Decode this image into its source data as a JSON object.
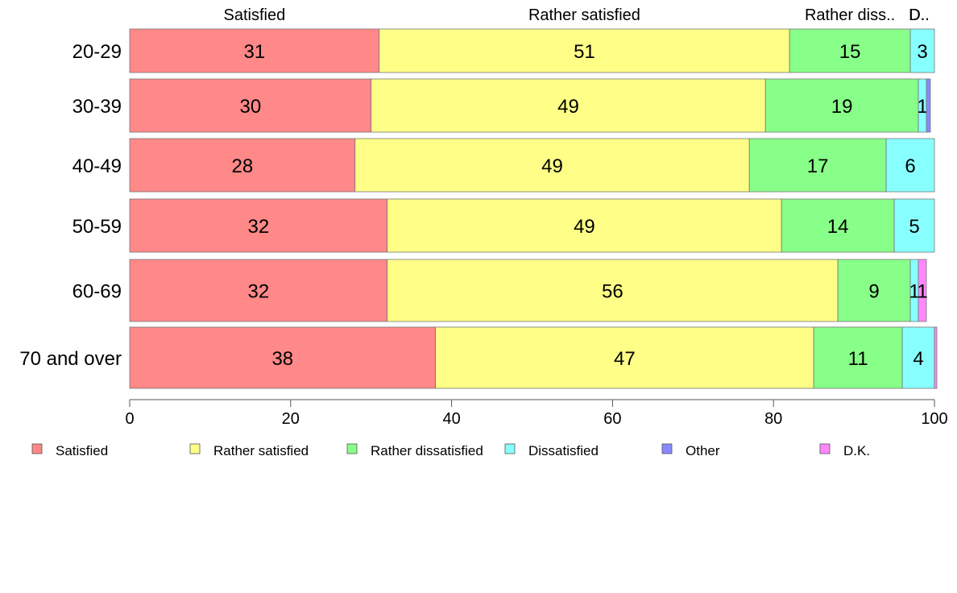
{
  "chart_data": {
    "type": "bar",
    "orientation": "horizontal",
    "stacked": true,
    "categories": [
      "20-29",
      "30-39",
      "40-49",
      "50-59",
      "60-69",
      "70 and over"
    ],
    "series": [
      {
        "name": "Satisfied",
        "color": "#ff8888",
        "values": [
          31,
          30,
          28,
          32,
          32,
          38
        ]
      },
      {
        "name": "Rather satisfied",
        "color": "#ffff88",
        "values": [
          51,
          49,
          49,
          49,
          56,
          47
        ]
      },
      {
        "name": "Rather dissatisfied",
        "color": "#88ff88",
        "values": [
          15,
          19,
          17,
          14,
          9,
          11
        ]
      },
      {
        "name": "Dissatisfied",
        "color": "#88ffff",
        "values": [
          3,
          1,
          6,
          5,
          1,
          4
        ]
      },
      {
        "name": "Other",
        "color": "#8888ff",
        "values": [
          0,
          0.5,
          0,
          0,
          0,
          0
        ]
      },
      {
        "name": "D.K.",
        "color": "#ff88ff",
        "values": [
          0,
          0,
          0,
          0,
          1,
          0.3
        ]
      }
    ],
    "data_labels": [
      [
        "31",
        "51",
        "15",
        "3",
        "",
        ""
      ],
      [
        "30",
        "49",
        "19",
        "1",
        "",
        ""
      ],
      [
        "28",
        "49",
        "17",
        "6",
        "",
        ""
      ],
      [
        "32",
        "49",
        "14",
        "5",
        "",
        ""
      ],
      [
        "32",
        "56",
        "9",
        "1",
        "",
        "1"
      ],
      [
        "38",
        "47",
        "11",
        "4",
        "",
        ""
      ]
    ],
    "top_labels": [
      "Satisfied",
      "Rather satisfied",
      "Rather diss..",
      "D..",
      "D..",
      "D.."
    ],
    "xlim": [
      0,
      100
    ],
    "xticks": [
      "0",
      "20",
      "40",
      "60",
      "80",
      "100"
    ],
    "legend_position": "bottom",
    "grid": false
  }
}
